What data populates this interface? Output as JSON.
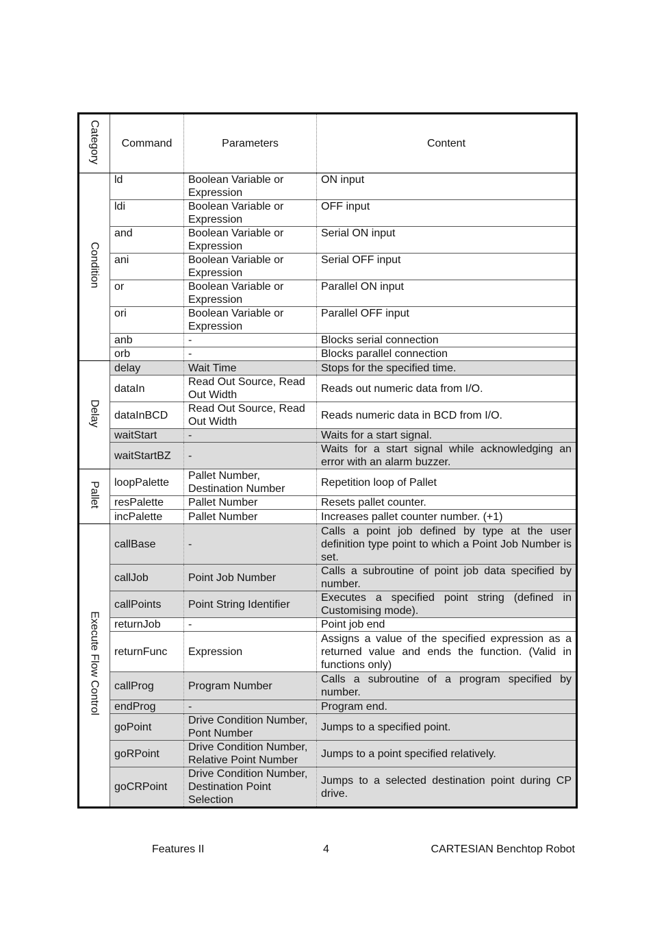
{
  "table": {
    "headers": {
      "category": "Category",
      "command": "Command",
      "parameters": "Parameters",
      "content": "Content"
    },
    "groups": [
      {
        "category": "Condition",
        "rows": [
          {
            "command": "ld",
            "parameters": "Boolean Variable or Expression",
            "content": "ON input",
            "shaded": false
          },
          {
            "command": "ldi",
            "parameters": "Boolean Variable or Expression",
            "content": "OFF input",
            "shaded": false
          },
          {
            "command": "and",
            "parameters": "Boolean Variable or Expression",
            "content": "Serial ON input",
            "shaded": false
          },
          {
            "command": "ani",
            "parameters": "Boolean Variable or Expression",
            "content": "Serial OFF input",
            "shaded": false
          },
          {
            "command": "or",
            "parameters": "Boolean Variable or Expression",
            "content": "Parallel ON input",
            "shaded": false
          },
          {
            "command": "ori",
            "parameters": "Boolean Variable or Expression",
            "content": "Parallel OFF input",
            "shaded": false
          },
          {
            "command": "anb",
            "parameters": "-",
            "content": "Blocks serial connection",
            "shaded": false
          },
          {
            "command": "orb",
            "parameters": "-",
            "content": "Blocks parallel connection",
            "shaded": false
          }
        ]
      },
      {
        "category": "Delay",
        "rows": [
          {
            "command": "delay",
            "parameters": "Wait Time",
            "content": "Stops for the specified time.",
            "shaded": true
          },
          {
            "command": "dataIn",
            "parameters": "Read Out Source, Read Out Width",
            "content": "Reads out numeric data from I/O.",
            "shaded": false
          },
          {
            "command": "dataInBCD",
            "parameters": "Read Out Source, Read Out Width",
            "content": "Reads numeric data in BCD from I/O.",
            "shaded": false
          },
          {
            "command": "waitStart",
            "parameters": "-",
            "content": "Waits for a start signal.",
            "shaded": true
          },
          {
            "command": "waitStartBZ",
            "parameters": "-",
            "content": "Waits for a start signal while acknowledging an error with an alarm buzzer.",
            "shaded": true
          }
        ]
      },
      {
        "category": "Pallet",
        "rows": [
          {
            "command": "loopPalette",
            "parameters": "Pallet Number, Destination Number",
            "content": "Repetition loop of Pallet",
            "shaded": false
          },
          {
            "command": "resPalette",
            "parameters": "Pallet Number",
            "content": "Resets pallet counter.",
            "shaded": false
          },
          {
            "command": "incPalette",
            "parameters": "Pallet Number",
            "content": "Increases pallet counter number. (+1)",
            "shaded": false
          }
        ]
      },
      {
        "category": "Execute Flow Control",
        "rows": [
          {
            "command": "callBase",
            "parameters": "-",
            "content": "Calls a point job defined by type at the user definition type point to which a Point Job Number is set.",
            "shaded": true
          },
          {
            "command": "callJob",
            "parameters": "Point Job Number",
            "content": "Calls a subroutine of point job data specified by number.",
            "shaded": true
          },
          {
            "command": "callPoints",
            "parameters": "Point String Identifier",
            "content": "Executes a specified point string (defined in Customising mode).",
            "shaded": true
          },
          {
            "command": "returnJob",
            "parameters": "-",
            "content": "Point job end",
            "shaded": false
          },
          {
            "command": "returnFunc",
            "parameters": "Expression",
            "content": "Assigns a value of the specified expression as a returned value and ends the function. (Valid in functions only)",
            "shaded": false
          },
          {
            "command": "callProg",
            "parameters": "Program Number",
            "content": "Calls a subroutine of a program specified by number.",
            "shaded": true
          },
          {
            "command": "endProg",
            "parameters": "-",
            "content": "Program end.",
            "shaded": true
          },
          {
            "command": "goPoint",
            "parameters": "Drive Condition Number, Pont Number",
            "content": "Jumps to a specified point.",
            "shaded": true
          },
          {
            "command": "goRPoint",
            "parameters": "Drive Condition Number, Relative Point Number",
            "content": "Jumps to a point specified relatively.",
            "shaded": true
          },
          {
            "command": "goCRPoint",
            "parameters": "Drive Condition Number, Destination Point Selection",
            "content": "Jumps to a selected destination point during CP drive.",
            "shaded": true
          }
        ]
      }
    ]
  },
  "footer": {
    "left": "Features II",
    "page": "4",
    "right": "CARTESIAN Benchtop Robot"
  },
  "colors": {
    "shade": "#dcdcdc",
    "border": "#000000"
  }
}
